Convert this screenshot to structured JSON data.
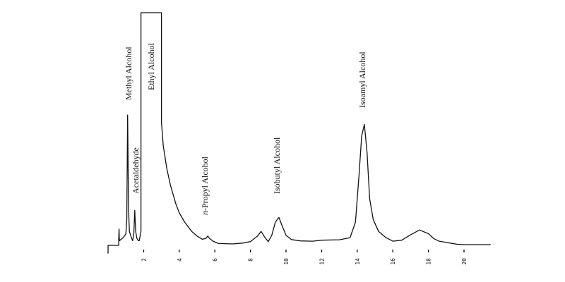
{
  "chart_data": {
    "type": "line",
    "title": "",
    "xlabel": "",
    "ylabel": "",
    "xlim": [
      0,
      21.5
    ],
    "ylim": [
      0,
      100
    ],
    "grid": false,
    "x_ticks": [
      {
        "value": 2,
        "label": "2"
      },
      {
        "value": 4,
        "label": "4"
      },
      {
        "value": 6,
        "label": "6"
      },
      {
        "value": 8,
        "label": "8"
      },
      {
        "value": 10,
        "label": "10"
      },
      {
        "value": 12,
        "label": "12"
      },
      {
        "value": 14,
        "label": "14"
      },
      {
        "value": 16,
        "label": "16"
      },
      {
        "value": 18,
        "label": "18"
      },
      {
        "value": 20,
        "label": "20"
      }
    ],
    "peaks": [
      {
        "name": "Methyl Alcohol",
        "x": 1.1,
        "y": 56
      },
      {
        "name": "Acetaldehyde",
        "x": 1.5,
        "y": 15
      },
      {
        "name": "Ethyl Alcohol",
        "x": 2.6,
        "y": 100
      },
      {
        "name": "n-Propyl Alcohol",
        "x": 5.6,
        "y": 4
      },
      {
        "name": "Isobutyl Alcohol",
        "x": 9.6,
        "y": 12
      },
      {
        "name": "Isoamyl Alcohol",
        "x": 14.4,
        "y": 52
      }
    ],
    "series": [
      {
        "x": [
          0,
          0,
          0.6,
          0.6,
          0.62,
          0.63,
          0.65,
          0.7,
          0.8,
          0.9,
          1.0,
          1.05,
          1.1,
          1.15,
          1.2,
          1.3,
          1.38,
          1.45,
          1.5,
          1.55,
          1.62,
          1.7,
          1.75,
          1.85,
          1.85,
          2.3,
          2.6,
          3.0,
          3.0,
          3.1,
          3.3,
          3.5,
          3.8,
          4.0,
          4.3,
          4.7,
          5.0,
          5.3,
          5.5,
          5.6,
          5.7,
          5.9,
          6.2,
          7.0,
          7.6,
          8.0,
          8.4,
          8.6,
          8.8,
          9.0,
          9.2,
          9.4,
          9.6,
          9.8,
          10.0,
          10.3,
          10.8,
          11.5,
          12.0,
          13.0,
          13.6,
          13.9,
          14.1,
          14.25,
          14.4,
          14.55,
          14.7,
          14.9,
          15.2,
          15.6,
          16.0,
          16.5,
          17.0,
          17.5,
          18.0,
          18.3,
          18.6,
          18.9,
          19.2,
          19.6,
          20.0,
          21.0,
          21.5
        ],
        "y": [
          -3.5,
          0,
          0,
          3,
          7,
          3,
          2,
          2.4,
          3,
          3.8,
          5,
          11,
          56,
          16,
          6,
          3.5,
          2,
          5,
          15,
          6,
          3,
          2,
          2,
          6,
          100,
          100,
          100,
          100,
          53,
          43,
          33,
          26,
          18,
          14,
          10,
          6,
          4,
          2.6,
          3,
          4,
          3,
          1.8,
          0.8,
          0.6,
          1,
          1.6,
          4,
          6,
          3.5,
          1.6,
          4.3,
          10,
          12,
          8,
          4.3,
          2.5,
          1.9,
          1.8,
          2.2,
          2.4,
          3.3,
          10,
          30,
          47,
          52,
          40,
          20,
          11,
          6,
          3.4,
          1.8,
          2.2,
          4.5,
          6.6,
          5,
          2.9,
          1.8,
          1.4,
          1,
          0.5,
          0.3,
          0.3,
          0.3
        ]
      }
    ]
  }
}
